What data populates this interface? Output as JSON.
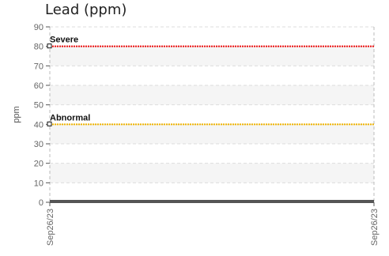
{
  "chart_data": {
    "type": "line",
    "title": "Lead (ppm)",
    "ylabel": "ppm",
    "xlabel": "",
    "ylim": [
      0,
      90
    ],
    "yticks": [
      0,
      10,
      20,
      30,
      40,
      50,
      60,
      70,
      80,
      90
    ],
    "x_tick_labels": [
      "Sep26/23",
      "Sep26/23"
    ],
    "grid": true,
    "reference_lines": [
      {
        "name": "Severe",
        "value": 80,
        "color": "#ee1111"
      },
      {
        "name": "Abnormal",
        "value": 40,
        "color": "#f0b400"
      }
    ],
    "series": [
      {
        "values": [
          0,
          0
        ],
        "color": "#555555"
      }
    ]
  }
}
